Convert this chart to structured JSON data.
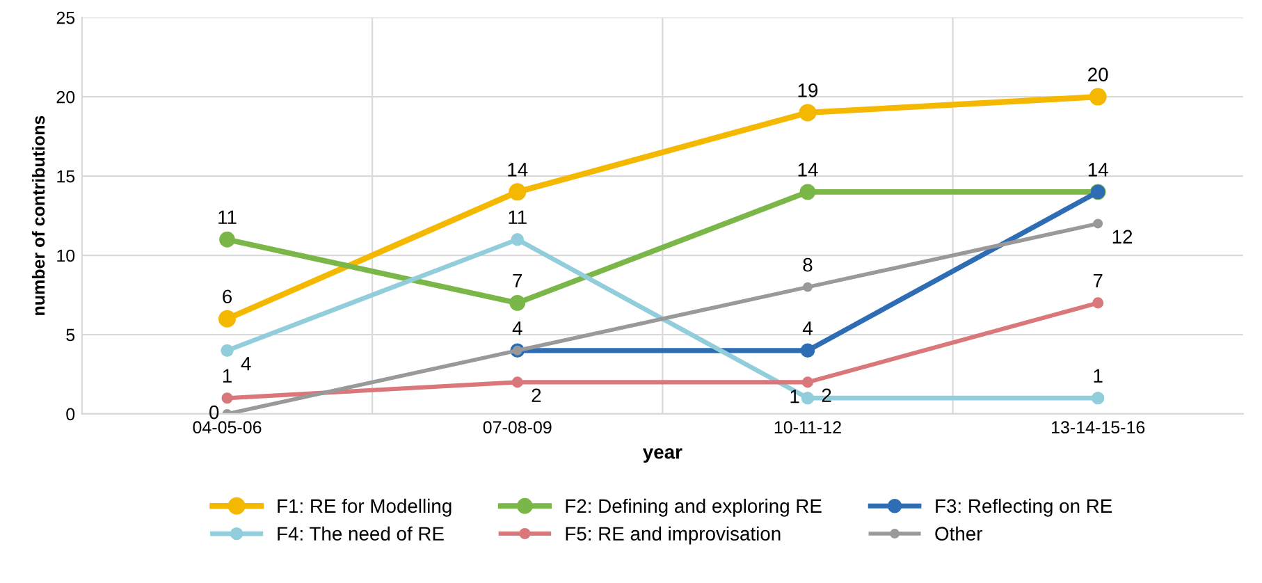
{
  "chart_data": {
    "type": "line",
    "xlabel": "year",
    "ylabel": "number of contributions",
    "categories": [
      "04-05-06",
      "07-08-09",
      "10-11-12",
      "13-14-15-16"
    ],
    "series": [
      {
        "name": "F1: RE for Modelling",
        "color": "#f5b800",
        "values": [
          6,
          14,
          19,
          20
        ],
        "value_labels": [
          "6",
          "14",
          "19",
          "20"
        ]
      },
      {
        "name": "F2: Defining and exploring RE",
        "color": "#7ab648",
        "values": [
          11,
          7,
          14,
          14
        ],
        "value_labels": [
          "11",
          "7",
          "14",
          null
        ]
      },
      {
        "name": "F3: Reflecting on RE",
        "color": "#2e6db4",
        "values": [
          null,
          4,
          4,
          14
        ],
        "value_labels": [
          null,
          "4",
          "4",
          "14"
        ]
      },
      {
        "name": "F4: The need of RE",
        "color": "#92cddc",
        "values": [
          4,
          11,
          1,
          1
        ],
        "value_labels": [
          "4",
          "11",
          "1",
          "1"
        ]
      },
      {
        "name": "F5: RE and improvisation",
        "color": "#d9777a",
        "values": [
          1,
          2,
          2,
          7
        ],
        "value_labels": [
          "1",
          "2",
          "2",
          "7"
        ]
      },
      {
        "name": "Other",
        "color": "#999999",
        "values": [
          0,
          4,
          8,
          12
        ],
        "value_labels": [
          "0",
          null,
          "8",
          "12"
        ]
      }
    ],
    "ylim": [
      0,
      25
    ],
    "yticks": [
      0,
      5,
      10,
      15,
      20,
      25
    ],
    "grid": true,
    "legend": "bottom",
    "marker": "circle",
    "line_style": "solid"
  }
}
